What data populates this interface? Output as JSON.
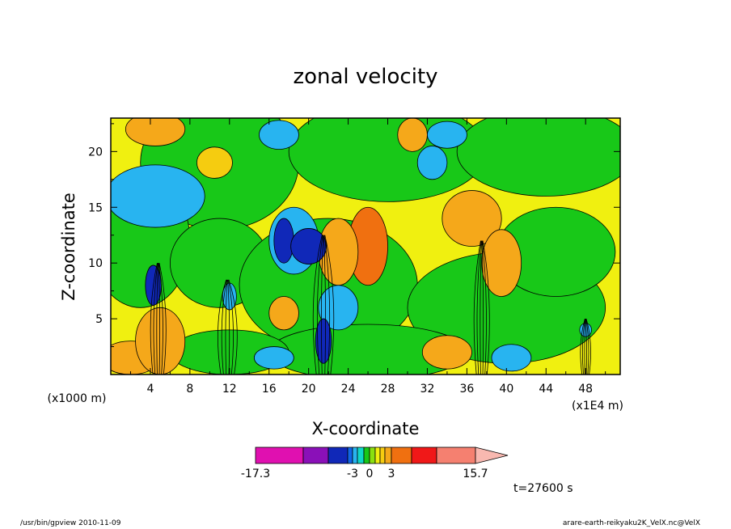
{
  "chart_data": {
    "type": "heatmap",
    "title": "zonal velocity",
    "xlabel": "X-coordinate",
    "ylabel": "Z-coordinate",
    "x_unit_left": "(x1000 m)",
    "x_unit_right": "(x1E4 m)",
    "xlim": [
      0,
      51.5
    ],
    "ylim": [
      0,
      23
    ],
    "x_ticks": [
      "4",
      "8",
      "12",
      "16",
      "20",
      "24",
      "28",
      "32",
      "36",
      "40",
      "44",
      "48"
    ],
    "y_ticks": [
      "5",
      "10",
      "15",
      "20"
    ],
    "colorbar": {
      "tick_labels": [
        "-17.3",
        "-3",
        "0",
        "3",
        "15.7"
      ],
      "colors": [
        "#e010b0",
        "#8a10b8",
        "#1028b8",
        "#1066e6",
        "#28b4f0",
        "#10d8c8",
        "#18c818",
        "#8ae010",
        "#f0f010",
        "#f5cc10",
        "#f5a81a",
        "#f07010",
        "#f01818",
        "#f58070",
        "#f8b8b0"
      ],
      "level_bounds": [
        -17.3,
        -12.0,
        -6.5,
        -4.5,
        -3.5,
        -3.0,
        -1.5,
        0.0,
        1.5,
        2.0,
        2.5,
        3.0,
        6.0,
        10.0,
        15.7
      ]
    },
    "time_label": "t=27600 s"
  },
  "footer": {
    "left": "/usr/bin/gpview   2010-11-09",
    "right": "arare-earth-reikyaku2K_VelX.nc@VelX"
  }
}
